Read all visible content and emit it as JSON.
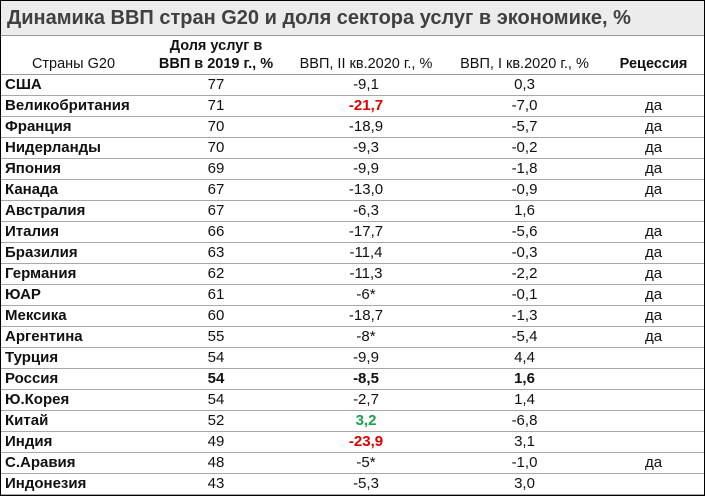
{
  "title": "Динамика ВВП стран G20 и доля сектора услуг в экономике, %",
  "headers": {
    "country": "Страны G20",
    "share": [
      "Доля услуг в",
      "ВВП в 2019 г., %"
    ],
    "q2": "ВВП, II кв.2020 г., %",
    "q1": "ВВП, I кв.2020 г., %",
    "recession": "Рецессия"
  },
  "colors": {
    "negative_highlight": "#e00000",
    "positive_highlight": "#1aa34a"
  },
  "rows": [
    {
      "country": "США",
      "share": "77",
      "q2": "-9,1",
      "q1": "0,3",
      "recession": ""
    },
    {
      "country": "Великобритания",
      "share": "71",
      "q2": "-21,7",
      "q1": "-7,0",
      "recession": "да",
      "q2_style": "red"
    },
    {
      "country": "Франция",
      "share": "70",
      "q2": "-18,9",
      "q1": "-5,7",
      "recession": "да"
    },
    {
      "country": "Нидерланды",
      "share": "70",
      "q2": "-9,3",
      "q1": "-0,2",
      "recession": "да"
    },
    {
      "country": "Япония",
      "share": "69",
      "q2": "-9,9",
      "q1": "-1,8",
      "recession": "да"
    },
    {
      "country": "Канада",
      "share": "67",
      "q2": "-13,0",
      "q1": "-0,9",
      "recession": "да"
    },
    {
      "country": "Австралия",
      "share": "67",
      "q2": "-6,3",
      "q1": "1,6",
      "recession": ""
    },
    {
      "country": "Италия",
      "share": "66",
      "q2": "-17,7",
      "q1": "-5,6",
      "recession": "да"
    },
    {
      "country": "Бразилия",
      "share": "63",
      "q2": "-11,4",
      "q1": "-0,3",
      "recession": "да"
    },
    {
      "country": "Германия",
      "share": "62",
      "q2": "-11,3",
      "q1": "-2,2",
      "recession": "да"
    },
    {
      "country": "ЮАР",
      "share": "61",
      "q2": "-6*",
      "q1": "-0,1",
      "recession": "да"
    },
    {
      "country": "Мексика",
      "share": "60",
      "q2": "-18,7",
      "q1": "-1,3",
      "recession": "да"
    },
    {
      "country": "Аргентина",
      "share": "55",
      "q2": "-8*",
      "q1": "-5,4",
      "recession": "да"
    },
    {
      "country": "Турция",
      "share": "54",
      "q2": "-9,9",
      "q1": "4,4",
      "recession": ""
    },
    {
      "country": "Россия",
      "share": "54",
      "q2": "-8,5",
      "q1": "1,6",
      "recession": "",
      "row_style": "bold"
    },
    {
      "country": "Ю.Корея",
      "share": "54",
      "q2": "-2,7",
      "q1": "1,4",
      "recession": ""
    },
    {
      "country": "Китай",
      "share": "52",
      "q2": "3,2",
      "q1": "-6,8",
      "recession": "",
      "q2_style": "green"
    },
    {
      "country": "Индия",
      "share": "49",
      "q2": "-23,9",
      "q1": "3,1",
      "recession": "",
      "q2_style": "red"
    },
    {
      "country": "С.Аравия",
      "share": "48",
      "q2": "-5*",
      "q1": "-1,0",
      "recession": "да"
    },
    {
      "country": "Индонезия",
      "share": "43",
      "q2": "-5,3",
      "q1": "3,0",
      "recession": ""
    }
  ]
}
